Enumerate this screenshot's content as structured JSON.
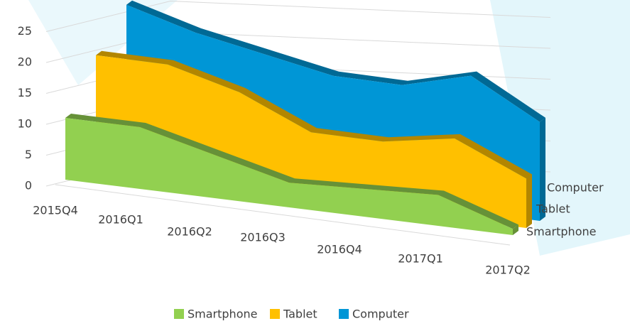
{
  "chart_data": {
    "type": "area3d",
    "categories": [
      "2015Q4",
      "2016Q1",
      "2016Q2",
      "2016Q3",
      "2016Q4",
      "2017Q1",
      "2017Q2"
    ],
    "series": [
      {
        "name": "Smartphone",
        "color": "#92d050",
        "values": [
          10,
          10,
          7,
          4,
          4.5,
          5,
          1
        ]
      },
      {
        "name": "Tablet",
        "color": "#ffc000",
        "values": [
          19,
          19,
          16,
          11,
          11,
          13,
          8
        ]
      },
      {
        "name": "Computer",
        "color": "#0096d6",
        "values": [
          26,
          23,
          21,
          19,
          19,
          22,
          16
        ]
      }
    ],
    "ylim": [
      0,
      30
    ],
    "yticks": [
      0,
      5,
      10,
      15,
      20,
      25
    ],
    "grid": true,
    "legend": "bottom"
  }
}
